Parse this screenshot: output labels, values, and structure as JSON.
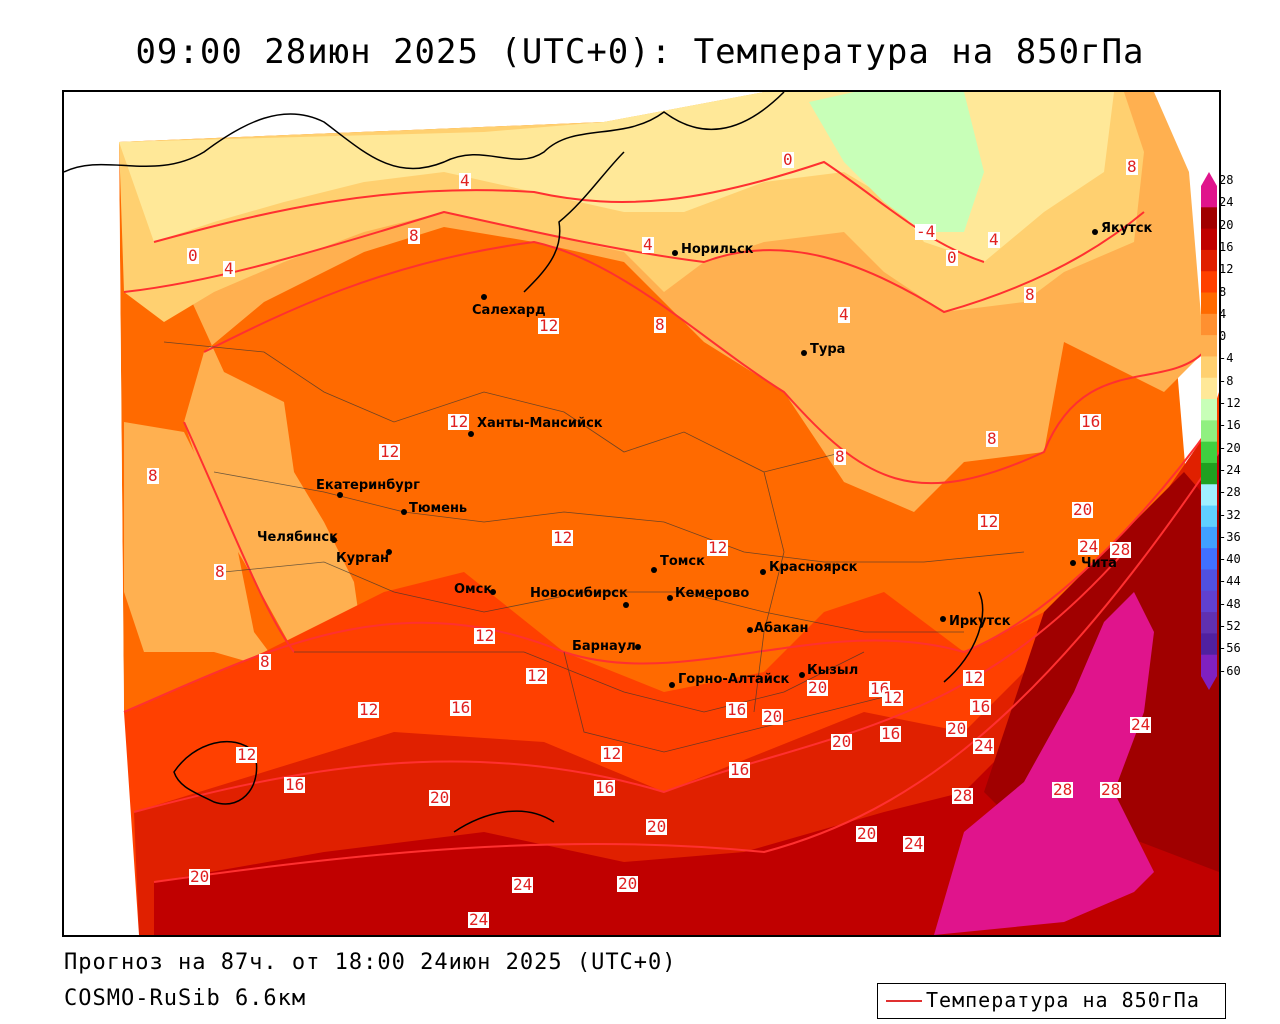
{
  "title": "09:00 28июн 2025 (UTC+0): Температура на 850гПа",
  "footer": {
    "forecast": "Прогноз на 87ч. от 18:00 24июн 2025 (UTC+0)",
    "model": "COSMO-RuSib 6.6км"
  },
  "legend": {
    "label": "Температура на 850гПа",
    "line_color": "#e03030"
  },
  "colorbar": {
    "ticks": [
      "28",
      "24",
      "20",
      "16",
      "12",
      "8",
      "4",
      "0",
      "-4",
      "-8",
      "-12",
      "-16",
      "-20",
      "-24",
      "-28",
      "-32",
      "-36",
      "-40",
      "-44",
      "-48",
      "-52",
      "-56",
      "-60"
    ],
    "colors": [
      "#e0148c",
      "#a00000",
      "#c00000",
      "#e02000",
      "#ff4000",
      "#ff6a00",
      "#ff9030",
      "#ffb050",
      "#ffd070",
      "#ffe898",
      "#c8ffb8",
      "#90f080",
      "#40d040",
      "#20a020",
      "#a0f0ff",
      "#60d0ff",
      "#40a0ff",
      "#4070ff",
      "#5050e0",
      "#6040d0",
      "#6030b0",
      "#5020a0",
      "#8020c0"
    ]
  },
  "cities": [
    {
      "name": "Норильск"
    },
    {
      "name": "Якутск"
    },
    {
      "name": "Салехард"
    },
    {
      "name": "Тура"
    },
    {
      "name": "Ханты-Мансийск"
    },
    {
      "name": "Екатеринбург"
    },
    {
      "name": "Тюмень"
    },
    {
      "name": "Челябинск"
    },
    {
      "name": "Курган"
    },
    {
      "name": "Омск"
    },
    {
      "name": "Новосибирск"
    },
    {
      "name": "Томск"
    },
    {
      "name": "Кемерово"
    },
    {
      "name": "Красноярск"
    },
    {
      "name": "Барнаул"
    },
    {
      "name": "Абакан"
    },
    {
      "name": "Горно-Алтайск"
    },
    {
      "name": "Кызыл"
    },
    {
      "name": "Иркутск"
    },
    {
      "name": "Чита"
    }
  ],
  "contour_labels": [
    "0",
    "4",
    "8",
    "12",
    "16",
    "20",
    "24",
    "28",
    "-4"
  ]
}
